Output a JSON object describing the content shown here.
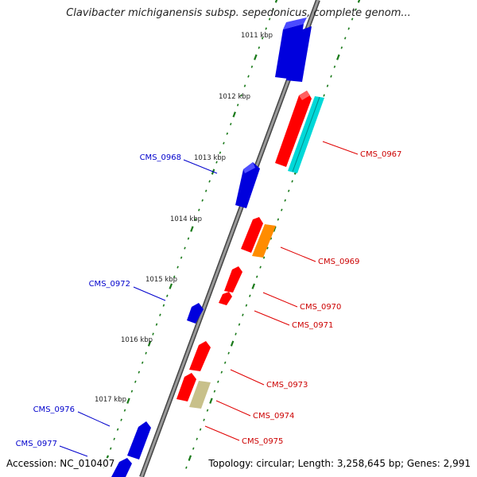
{
  "title": "Clavibacter michiganensis subsp. sepedonicus, complete genom...",
  "footer": {
    "accession": "Accession: NC_010407",
    "topology": "Topology: circular; Length: 3,258,645 bp; Genes: 2,991"
  },
  "scale_labels": [
    "1011 kbp",
    "1012 kbp",
    "1013 kbp",
    "1014 kbp",
    "1015 kbp",
    "1016 kbp",
    "1017 kbp"
  ],
  "genes": [
    {
      "name": "CMS_0967",
      "strand": "forward",
      "color": "#ff0000"
    },
    {
      "name": "CMS_0968",
      "strand": "reverse",
      "color": "#0000ff"
    },
    {
      "name": "CMS_0969",
      "strand": "forward",
      "color": "#ff0000"
    },
    {
      "name": "CMS_0970",
      "strand": "forward",
      "color": "#ff0000"
    },
    {
      "name": "CMS_0971",
      "strand": "forward",
      "color": "#ff0000"
    },
    {
      "name": "CMS_0972",
      "strand": "reverse",
      "color": "#0000ff"
    },
    {
      "name": "CMS_0973",
      "strand": "forward",
      "color": "#ff0000"
    },
    {
      "name": "CMS_0974",
      "strand": "forward",
      "color": "#ff0000"
    },
    {
      "name": "CMS_0975",
      "strand": "forward",
      "color": "#ff0000"
    },
    {
      "name": "CMS_0976",
      "strand": "reverse",
      "color": "#0000ff"
    },
    {
      "name": "CMS_0977",
      "strand": "reverse",
      "color": "#0000ff"
    }
  ],
  "feature_colors": {
    "cds_forward": "#ff0000",
    "cds_reverse": "#0000ff",
    "rRNA": "#00e5e5",
    "tRNA": "#ff8c00",
    "other": "#c8c08a",
    "backbone": "#888888",
    "scale_ticks": "#1a7a1a"
  }
}
